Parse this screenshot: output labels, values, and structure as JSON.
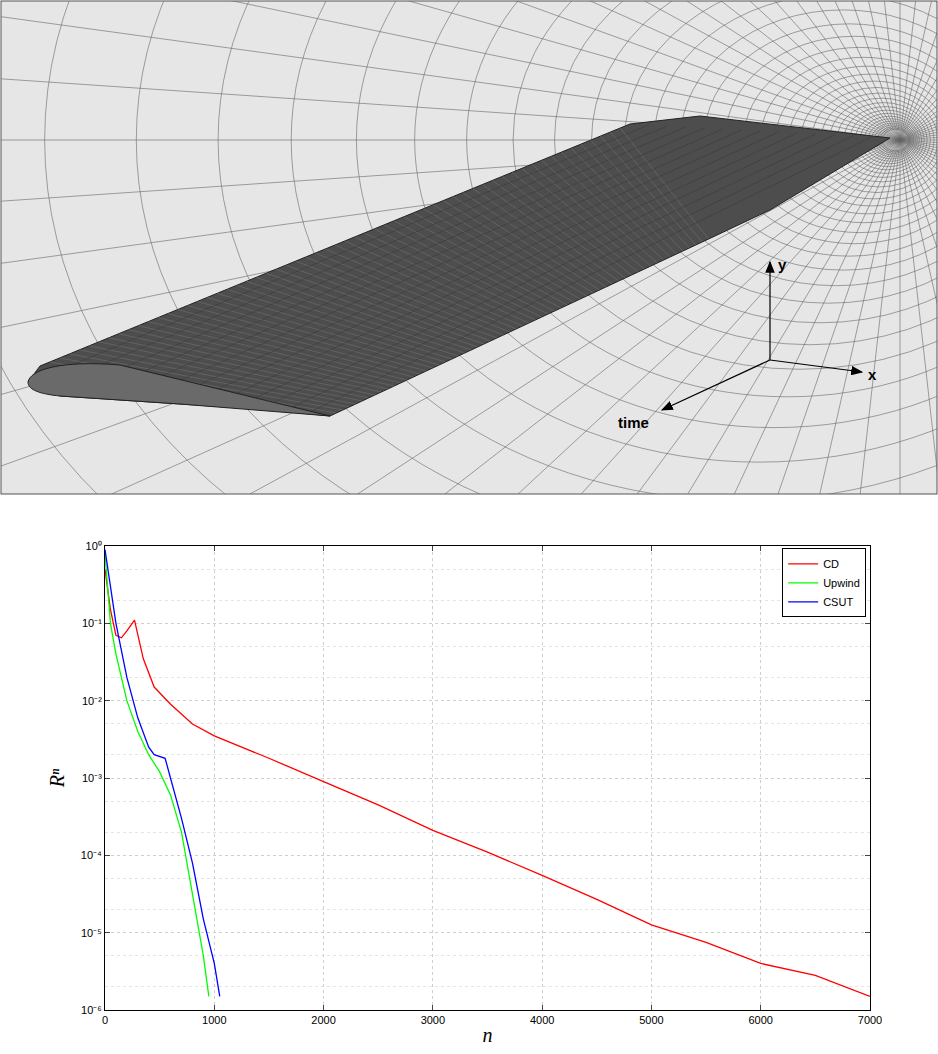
{
  "mesh_panel": {
    "axis_labels": {
      "y": "y",
      "x": "x",
      "time": "time"
    }
  },
  "chart_data": {
    "type": "line",
    "x_label": "n",
    "y_label": "Rⁿ",
    "log": "y",
    "grid": true,
    "legend": "top right",
    "xlim": [
      0,
      7000
    ],
    "xticks": [
      0,
      1000,
      2000,
      3000,
      4000,
      5000,
      6000,
      7000
    ],
    "ylim": [
      1e-06,
      1
    ],
    "yticks": [
      {
        "value": 1e-06,
        "label": "10⁻⁶"
      },
      {
        "value": 1e-05,
        "label": "10⁻⁵"
      },
      {
        "value": 0.0001,
        "label": "10⁻⁴"
      },
      {
        "value": 0.001,
        "label": "10⁻³"
      },
      {
        "value": 0.01,
        "label": "10⁻²"
      },
      {
        "value": 0.1,
        "label": "10⁻¹"
      },
      {
        "value": 1,
        "label": "10⁰"
      }
    ],
    "series": [
      {
        "name": "CD",
        "color": "#ff0000",
        "x": [
          0,
          50,
          100,
          150,
          200,
          270,
          350,
          450,
          600,
          800,
          1000,
          1500,
          2000,
          2500,
          3000,
          3500,
          4000,
          4500,
          5000,
          5500,
          6000,
          6500,
          7000
        ],
        "values": [
          0.5,
          0.15,
          0.07,
          0.065,
          0.08,
          0.11,
          0.035,
          0.015,
          0.009,
          0.005,
          0.0035,
          0.0018,
          0.0009,
          0.00045,
          0.00021,
          0.00011,
          5.5e-05,
          2.7e-05,
          1.26e-05,
          7.5e-06,
          4e-06,
          2.8e-06,
          1.5e-06
        ]
      },
      {
        "name": "Upwind",
        "color": "#00ff00",
        "x": [
          0,
          50,
          100,
          200,
          300,
          400,
          500,
          600,
          700,
          800,
          900,
          950
        ],
        "values": [
          0.8,
          0.1,
          0.04,
          0.01,
          0.004,
          0.002,
          0.0012,
          0.0006,
          0.0002,
          3e-05,
          5e-06,
          1.5e-06
        ]
      },
      {
        "name": "CSUT",
        "color": "#0000ff",
        "x": [
          0,
          100,
          200,
          300,
          400,
          450,
          550,
          600,
          700,
          800,
          900,
          1000,
          1050
        ],
        "values": [
          0.9,
          0.1,
          0.02,
          0.006,
          0.0025,
          0.002,
          0.0018,
          0.001,
          0.0003,
          8e-05,
          1.5e-05,
          4e-06,
          1.5e-06
        ]
      }
    ]
  }
}
